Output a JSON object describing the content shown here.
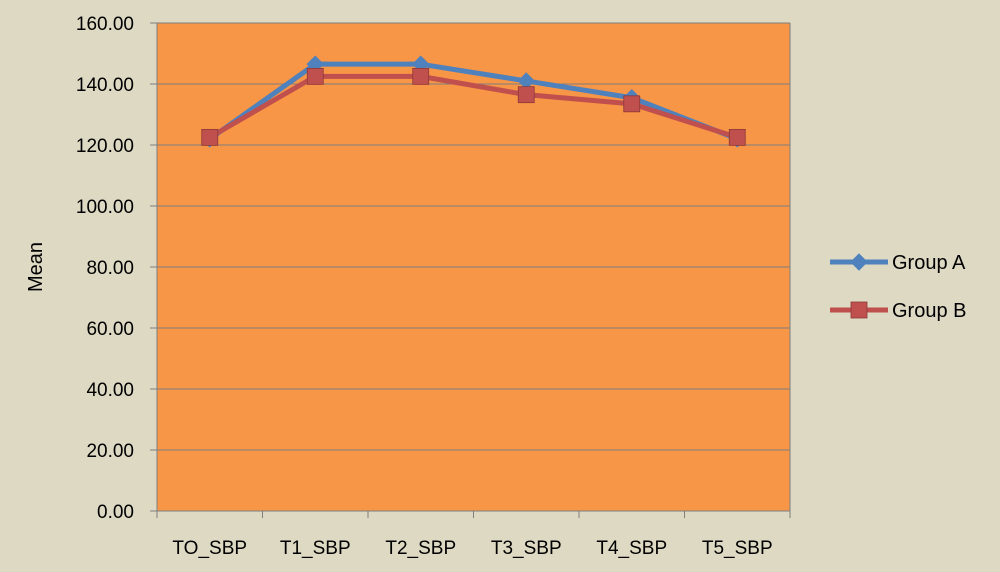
{
  "colors": {
    "background": "#ddd9c3",
    "plot_area": "#f79646",
    "grid": "#7f7f7f",
    "series_a": "#4f81bd",
    "series_b": "#c0504d"
  },
  "chart_data": {
    "type": "line",
    "title": "",
    "xlabel": "",
    "ylabel": "Mean",
    "categories": [
      "TO_SBP",
      "T1_SBP",
      "T2_SBP",
      "T3_SBP",
      "T4_SBP",
      "T5_SBP"
    ],
    "ylim": [
      0,
      160
    ],
    "y_ticks": [
      "0.00",
      "20.00",
      "40.00",
      "60.00",
      "80.00",
      "100.00",
      "120.00",
      "140.00",
      "160.00"
    ],
    "grid": true,
    "legend_position": "right",
    "series": [
      {
        "name": "Group A",
        "marker": "diamond",
        "values": [
          122.0,
          146.5,
          146.5,
          141.0,
          135.5,
          122.0
        ]
      },
      {
        "name": "Group B",
        "marker": "square",
        "values": [
          122.5,
          142.5,
          142.5,
          136.5,
          133.5,
          122.5
        ]
      }
    ]
  }
}
